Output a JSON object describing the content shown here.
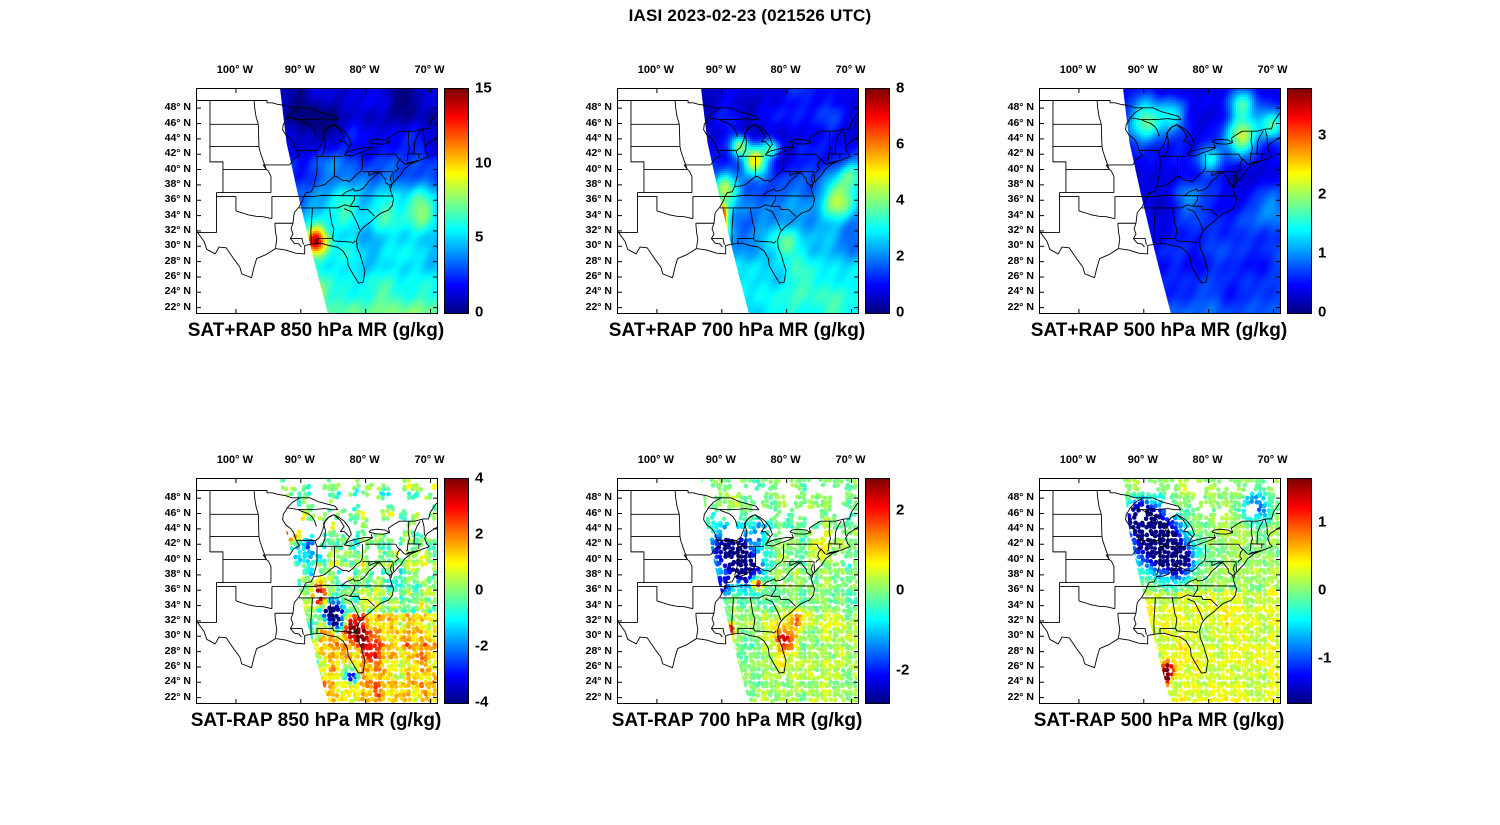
{
  "figure_title": "IASI 2023-02-23 (021526 UTC)",
  "map_axes": {
    "lon_tick_labels": [
      "100° W",
      "90° W",
      "80° W",
      "70° W"
    ],
    "lon_tick_values": [
      -100,
      -90,
      -80,
      -70
    ],
    "lat_tick_labels": [
      "48° N",
      "46° N",
      "44° N",
      "42° N",
      "40° N",
      "38° N",
      "36° N",
      "34° N",
      "32° N",
      "30° N",
      "28° N",
      "26° N",
      "24° N",
      "22° N"
    ],
    "lat_tick_values": [
      48,
      46,
      44,
      42,
      40,
      38,
      36,
      34,
      32,
      30,
      28,
      26,
      24,
      22
    ],
    "lon_range_deg_west": [
      -106,
      -69
    ],
    "lat_range_deg_north": [
      21.3,
      50.5
    ]
  },
  "chart_data": [
    {
      "type": "heatmap",
      "title": "SAT+RAP 850 hPa MR (g/kg)",
      "units": "g/kg",
      "colormap": "jet",
      "colorbar": {
        "min": 0,
        "max": 15,
        "ticks": [
          0,
          5,
          10,
          15
        ]
      }
    },
    {
      "type": "heatmap",
      "title": "SAT+RAP 700 hPa MR (g/kg)",
      "units": "g/kg",
      "colormap": "jet",
      "colorbar": {
        "min": 0,
        "max": 8,
        "ticks": [
          0,
          2,
          4,
          6,
          8
        ]
      }
    },
    {
      "type": "heatmap",
      "title": "SAT+RAP 500 hPa MR (g/kg)",
      "units": "g/kg",
      "colormap": "jet",
      "colorbar": {
        "min": 0,
        "max": 3.8,
        "ticks": [
          0,
          1,
          2,
          3
        ]
      }
    },
    {
      "type": "scatter",
      "title": "SAT-RAP 850 hPa MR (g/kg)",
      "units": "g/kg",
      "colormap": "jet",
      "colorbar": {
        "min": -4,
        "max": 4,
        "ticks": [
          -4,
          -2,
          0,
          2,
          4
        ]
      }
    },
    {
      "type": "scatter",
      "title": "SAT-RAP 700 hPa MR (g/kg)",
      "units": "g/kg",
      "colormap": "jet",
      "colorbar": {
        "min": -2.8,
        "max": 2.8,
        "ticks": [
          -2,
          0,
          2
        ]
      }
    },
    {
      "type": "scatter",
      "title": "SAT-RAP 500 hPa MR (g/kg)",
      "units": "g/kg",
      "colormap": "jet",
      "colorbar": {
        "min": -1.65,
        "max": 1.65,
        "ticks": [
          -1,
          0,
          1
        ]
      }
    }
  ]
}
